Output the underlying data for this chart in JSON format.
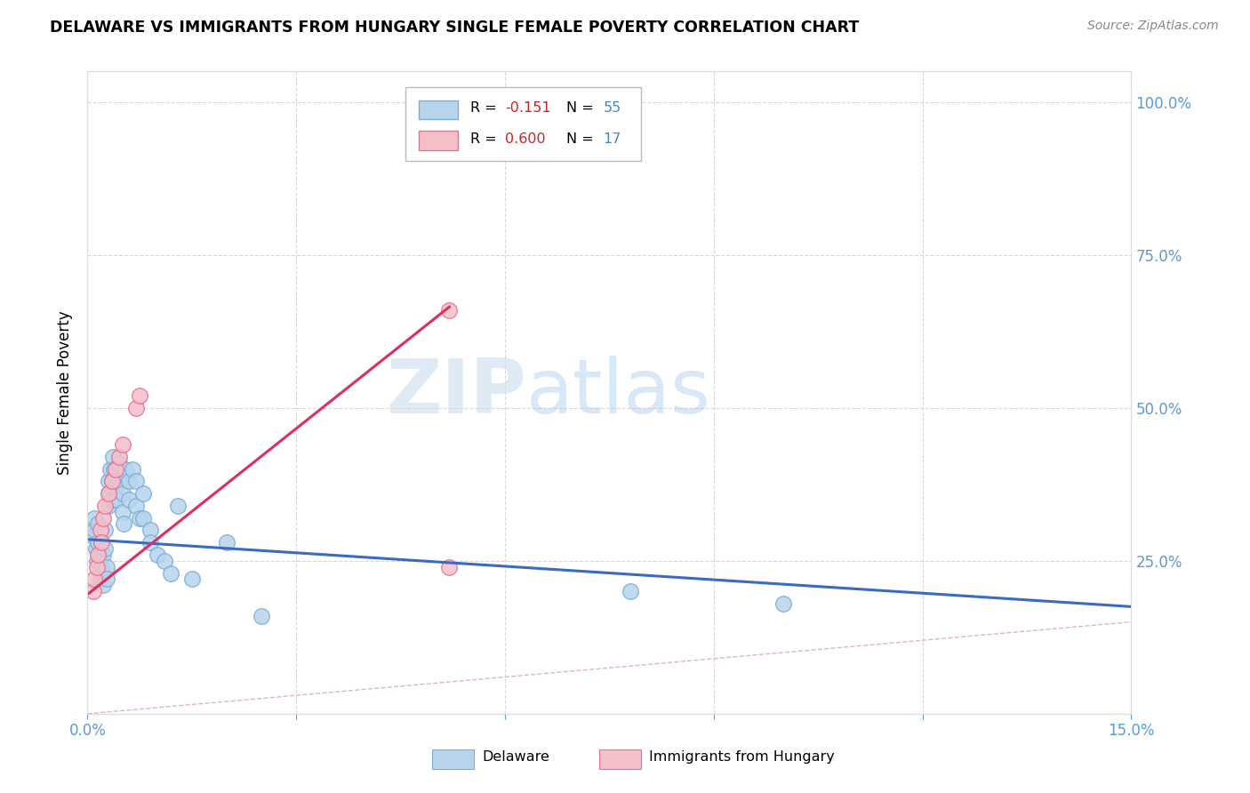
{
  "title": "DELAWARE VS IMMIGRANTS FROM HUNGARY SINGLE FEMALE POVERTY CORRELATION CHART",
  "source": "Source: ZipAtlas.com",
  "ylabel": "Single Female Poverty",
  "right_yticks": [
    "100.0%",
    "75.0%",
    "50.0%",
    "25.0%"
  ],
  "right_ytick_vals": [
    1.0,
    0.75,
    0.5,
    0.25
  ],
  "xmin": 0.0,
  "xmax": 0.15,
  "ymin": 0.0,
  "ymax": 1.05,
  "watermark": "ZIPatlas",
  "delaware_color": "#b8d4ed",
  "hungary_color": "#f5bfca",
  "delaware_edge": "#7aaed4",
  "hungary_edge": "#e87090",
  "trend_delaware_color": "#3a6bbf",
  "trend_hungary_color": "#d93060",
  "diagonal_color": "#d8b8c0",
  "delaware_x": [
    0.0008,
    0.001,
    0.001,
    0.0012,
    0.0013,
    0.0015,
    0.0015,
    0.0017,
    0.0018,
    0.002,
    0.002,
    0.0022,
    0.0022,
    0.0023,
    0.0025,
    0.0025,
    0.0027,
    0.0028,
    0.003,
    0.003,
    0.003,
    0.0032,
    0.0033,
    0.0035,
    0.0035,
    0.0037,
    0.0038,
    0.004,
    0.004,
    0.0042,
    0.0045,
    0.0045,
    0.005,
    0.005,
    0.0052,
    0.0055,
    0.006,
    0.006,
    0.0065,
    0.007,
    0.007,
    0.0075,
    0.008,
    0.008,
    0.009,
    0.009,
    0.01,
    0.011,
    0.012,
    0.013,
    0.015,
    0.02,
    0.025,
    0.078,
    0.1
  ],
  "delaware_y": [
    0.29,
    0.3,
    0.32,
    0.27,
    0.25,
    0.31,
    0.28,
    0.26,
    0.22,
    0.24,
    0.28,
    0.26,
    0.23,
    0.21,
    0.3,
    0.27,
    0.24,
    0.22,
    0.36,
    0.34,
    0.38,
    0.36,
    0.4,
    0.38,
    0.35,
    0.42,
    0.4,
    0.39,
    0.37,
    0.35,
    0.41,
    0.38,
    0.36,
    0.33,
    0.31,
    0.4,
    0.38,
    0.35,
    0.4,
    0.38,
    0.34,
    0.32,
    0.36,
    0.32,
    0.3,
    0.28,
    0.26,
    0.25,
    0.23,
    0.34,
    0.22,
    0.28,
    0.16,
    0.2,
    0.18
  ],
  "hungary_x": [
    0.0008,
    0.001,
    0.0013,
    0.0015,
    0.0018,
    0.002,
    0.0022,
    0.0025,
    0.003,
    0.0035,
    0.004,
    0.0045,
    0.005,
    0.007,
    0.0075,
    0.052,
    0.052
  ],
  "hungary_y": [
    0.2,
    0.22,
    0.24,
    0.26,
    0.3,
    0.28,
    0.32,
    0.34,
    0.36,
    0.38,
    0.4,
    0.42,
    0.44,
    0.5,
    0.52,
    0.24,
    0.66
  ],
  "del_trend_x0": 0.0,
  "del_trend_x1": 0.15,
  "del_trend_y0": 0.285,
  "del_trend_y1": 0.175,
  "hun_trend_x0": 0.0,
  "hun_trend_x1": 0.052,
  "hun_trend_y0": 0.195,
  "hun_trend_y1": 0.665
}
